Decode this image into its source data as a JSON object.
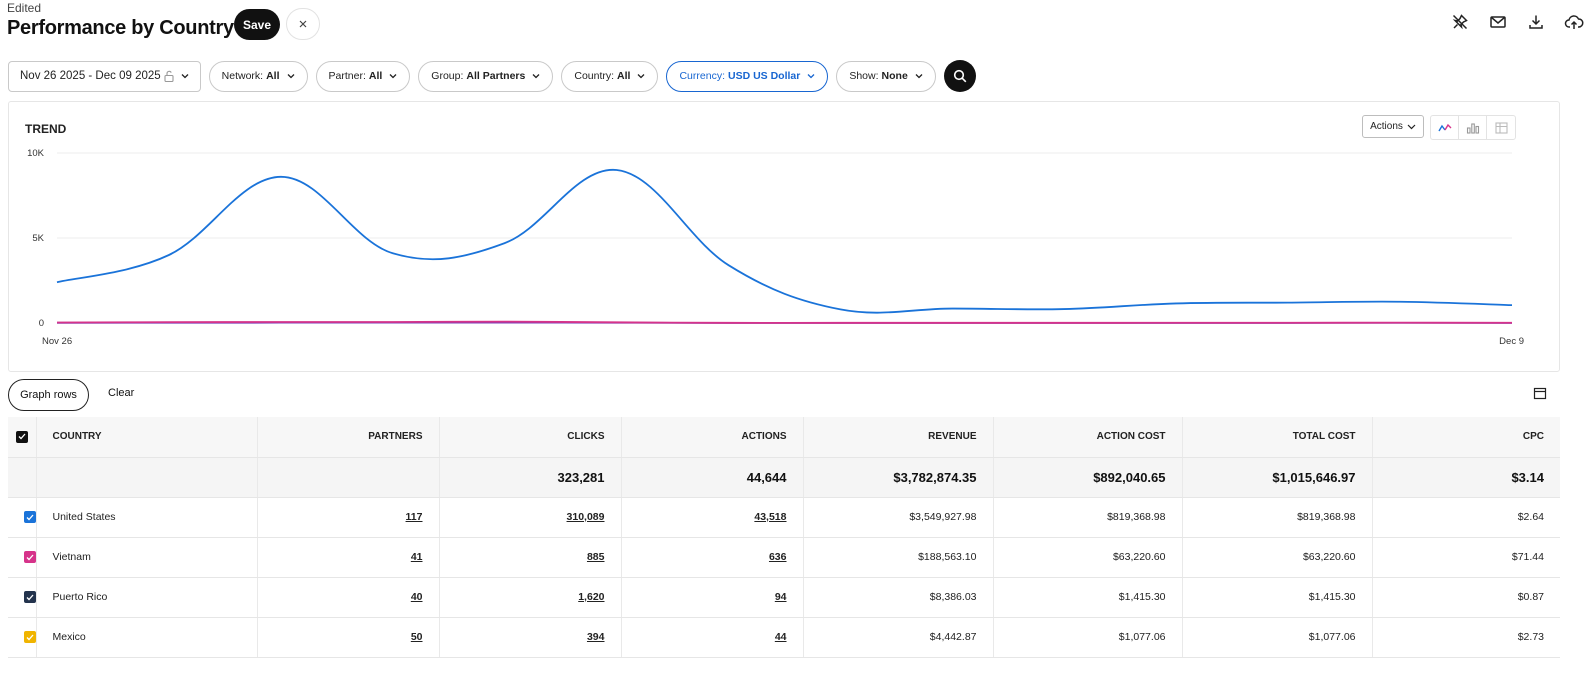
{
  "header": {
    "status": "Edited",
    "title": "Performance by Country",
    "save_label": "Save"
  },
  "top_icons": [
    "pin-off-icon",
    "mail-icon",
    "download-icon",
    "cloud-upload-icon"
  ],
  "filters": {
    "date_range": "Nov 26 2025 - Dec 09 2025",
    "network": {
      "label": "Network:",
      "value": "All"
    },
    "partner": {
      "label": "Partner:",
      "value": "All"
    },
    "group": {
      "label": "Group:",
      "value": "All Partners"
    },
    "country": {
      "label": "Country:",
      "value": "All"
    },
    "currency": {
      "label": "Currency:",
      "value": "USD US Dollar"
    },
    "show": {
      "label": "Show:",
      "value": "None"
    }
  },
  "trend": {
    "title": "TREND",
    "actions_label": "Actions"
  },
  "chart_data": {
    "type": "line",
    "title": "TREND",
    "x_labels": [
      "Nov 26",
      "Dec 9"
    ],
    "x": [
      "Nov 26",
      "Nov 27",
      "Nov 28",
      "Nov 29",
      "Nov 30",
      "Dec 1",
      "Dec 2",
      "Dec 3",
      "Dec 4",
      "Dec 5",
      "Dec 6",
      "Dec 7",
      "Dec 8",
      "Dec 9"
    ],
    "y_ticks": [
      "0",
      "5K",
      "10K"
    ],
    "ylim": [
      0,
      10000
    ],
    "grid": true,
    "series": [
      {
        "color": "#1a73d9",
        "values": [
          2400,
          4000,
          8600,
          4100,
          4700,
          9000,
          3400,
          800,
          850,
          820,
          1150,
          1200,
          1250,
          1050
        ]
      },
      {
        "color": "#d6338a",
        "values": [
          30,
          50,
          60,
          60,
          80,
          40,
          10,
          10,
          10,
          10,
          15,
          15,
          20,
          15
        ]
      },
      {
        "color": "#7b3fb8",
        "values": [
          10,
          15,
          20,
          20,
          25,
          15,
          5,
          5,
          5,
          5,
          5,
          5,
          8,
          5
        ]
      }
    ]
  },
  "graph_controls": {
    "graph_rows_label": "Graph rows",
    "clear_label": "Clear"
  },
  "table": {
    "headers": {
      "country": "COUNTRY",
      "partners": "PARTNERS",
      "clicks": "CLICKS",
      "actions": "ACTIONS",
      "revenue": "REVENUE",
      "action_cost": "ACTION COST",
      "total_cost": "TOTAL COST",
      "cpc": "CPC"
    },
    "totals": {
      "clicks": "323,281",
      "actions": "44,644",
      "revenue": "$3,782,874.35",
      "action_cost": "$892,040.65",
      "total_cost": "$1,015,646.97",
      "cpc": "$3.14"
    },
    "rows": [
      {
        "color": "#1a73d9",
        "country": "United States",
        "partners": "117",
        "clicks": "310,089",
        "actions": "43,518",
        "revenue": "$3,549,927.98",
        "action_cost": "$819,368.98",
        "total_cost": "$819,368.98",
        "cpc": "$2.64"
      },
      {
        "color": "#d6338a",
        "country": "Vietnam",
        "partners": "41",
        "clicks": "885",
        "actions": "636",
        "revenue": "$188,563.10",
        "action_cost": "$63,220.60",
        "total_cost": "$63,220.60",
        "cpc": "$71.44"
      },
      {
        "color": "#23334d",
        "country": "Puerto Rico",
        "partners": "40",
        "clicks": "1,620",
        "actions": "94",
        "revenue": "$8,386.03",
        "action_cost": "$1,415.30",
        "total_cost": "$1,415.30",
        "cpc": "$0.87"
      },
      {
        "color": "#f0b400",
        "country": "Mexico",
        "partners": "50",
        "clicks": "394",
        "actions": "44",
        "revenue": "$4,442.87",
        "action_cost": "$1,077.06",
        "total_cost": "$1,077.06",
        "cpc": "$2.73"
      }
    ]
  }
}
